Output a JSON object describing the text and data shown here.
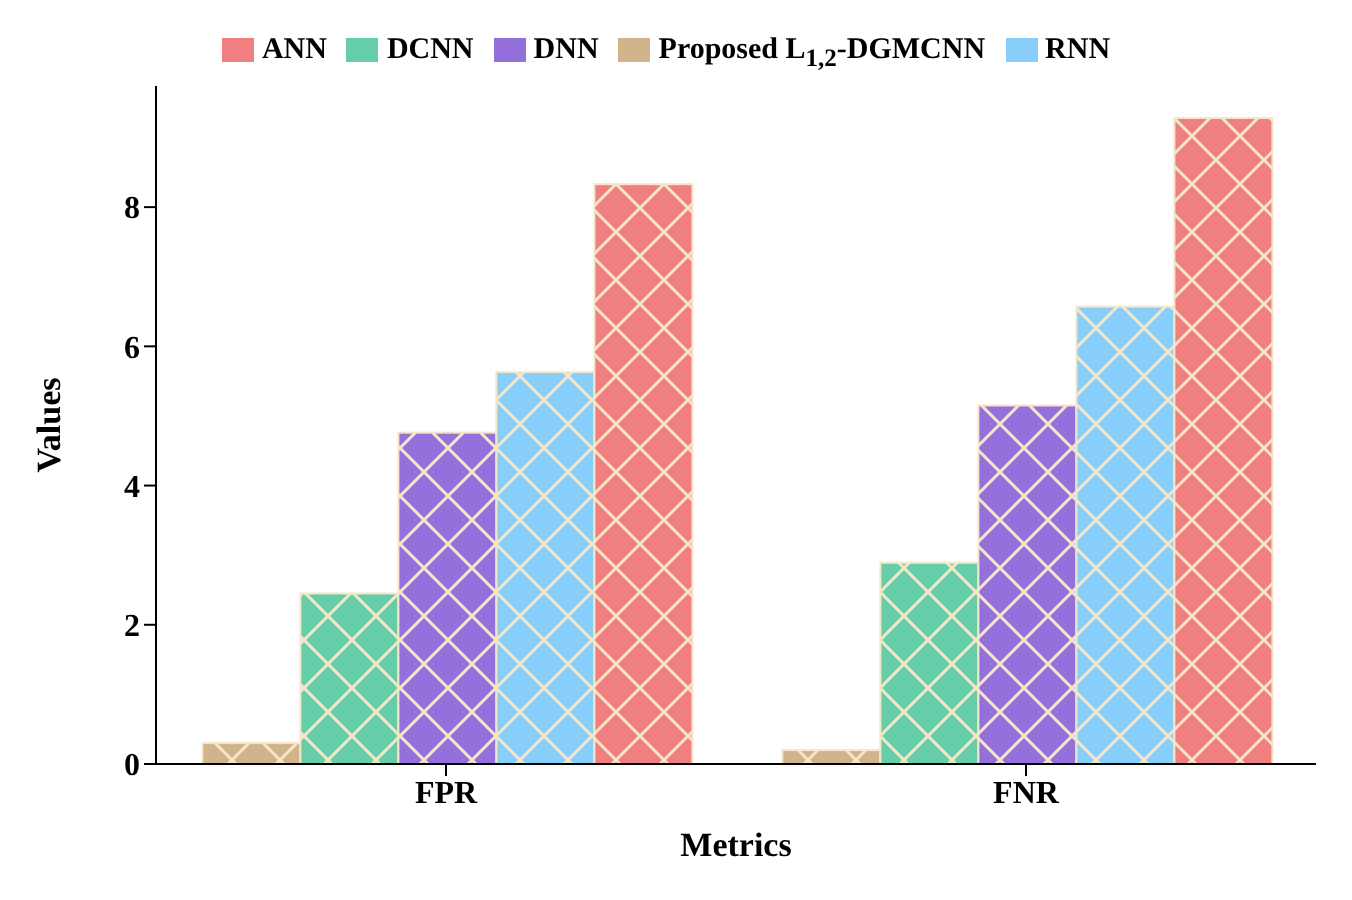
{
  "chart_data": {
    "type": "bar",
    "xlabel": "Metrics",
    "ylabel": "Values",
    "categories": [
      "FPR",
      "FNR"
    ],
    "series": [
      {
        "name": "Proposed L$_{1,2}$-DGMCNN",
        "color": "#d2b48c",
        "values": [
          0.3,
          0.2
        ]
      },
      {
        "name": "DCNN",
        "color": "#66cdaa",
        "values": [
          2.45,
          2.89
        ]
      },
      {
        "name": "DNN",
        "color": "#9370db",
        "values": [
          4.76,
          5.15
        ]
      },
      {
        "name": "RNN",
        "color": "#87cefa",
        "values": [
          5.63,
          6.57
        ]
      },
      {
        "name": "ANN",
        "color": "#f08080",
        "values": [
          8.33,
          9.28
        ]
      }
    ],
    "ylim": [
      0,
      9.74
    ],
    "yticks": [
      0,
      2,
      4,
      6,
      8
    ],
    "grid": false,
    "legend": "top"
  }
}
